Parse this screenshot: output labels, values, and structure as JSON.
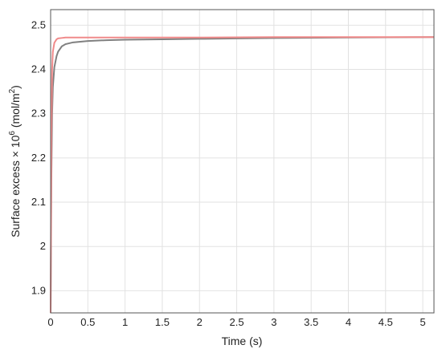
{
  "chart_data": {
    "type": "line",
    "x_label": "Time (s)",
    "y_label_parts": [
      "Surface excess × 10",
      "6",
      " (mol/m",
      "2",
      ")"
    ],
    "x": [
      0,
      0.01,
      0.02,
      0.03,
      0.05,
      0.08,
      0.1,
      0.15,
      0.2,
      0.3,
      0.5,
      0.75,
      1,
      1.5,
      2,
      3,
      4,
      5.15
    ],
    "series": [
      {
        "color": "#808080",
        "values": [
          1.85,
          2.15,
          2.3,
          2.36,
          2.405,
          2.43,
          2.44,
          2.452,
          2.457,
          2.461,
          2.464,
          2.466,
          2.467,
          2.468,
          2.469,
          2.471,
          2.472,
          2.473
        ]
      },
      {
        "color": "#f08a8a",
        "values": [
          1.85,
          2.25,
          2.4,
          2.44,
          2.46,
          2.468,
          2.47,
          2.471,
          2.472,
          2.472,
          2.472,
          2.472,
          2.472,
          2.472,
          2.472,
          2.473,
          2.473,
          2.473
        ]
      }
    ],
    "xlim": [
      0,
      5.15
    ],
    "ylim": [
      1.85,
      2.535
    ],
    "xticks": [
      0,
      0.5,
      1,
      1.5,
      2,
      2.5,
      3,
      3.5,
      4,
      4.5,
      5
    ],
    "yticks": [
      1.9,
      2,
      2.1,
      2.2,
      2.3,
      2.4,
      2.5
    ],
    "grid": true
  }
}
